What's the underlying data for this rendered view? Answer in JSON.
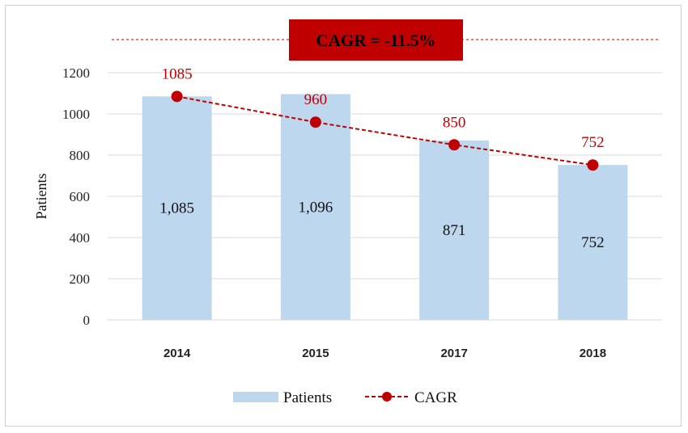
{
  "chart_data": {
    "type": "bar",
    "categories": [
      "2014",
      "2015",
      "2017",
      "2018"
    ],
    "series": [
      {
        "name": "Patients",
        "type": "bar",
        "values": [
          1085,
          1096,
          871,
          752
        ],
        "labels": [
          "1,085",
          "1,096",
          "871",
          "752"
        ],
        "color": "#bdd7ee"
      },
      {
        "name": "CAGR",
        "type": "line",
        "values": [
          1085,
          960,
          850,
          752
        ],
        "labels": [
          "1085",
          "960",
          "850",
          "752"
        ],
        "color": "#c00000"
      }
    ],
    "ylabel": "Patients",
    "ylim": [
      0,
      1200
    ],
    "yticks": [
      0,
      200,
      400,
      600,
      800,
      1000,
      1200
    ],
    "annotation": {
      "text": "CAGR = -11.5%",
      "fill": "#c00000"
    },
    "grid": true,
    "legend": "bottom"
  }
}
